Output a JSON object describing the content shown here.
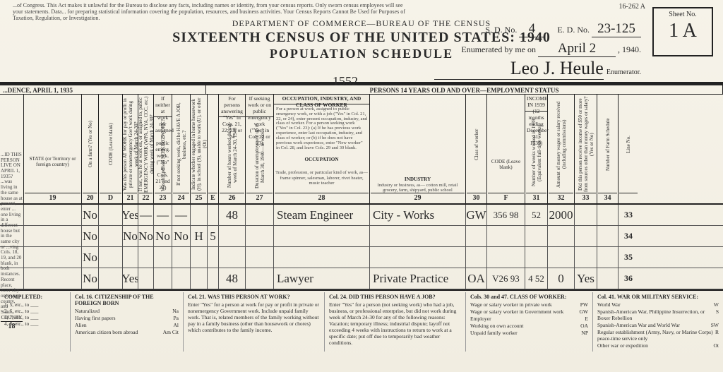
{
  "header": {
    "top_note": "...of Congress. This Act makes it unlawful for the Bureau to disclose any facts, including names or identity, from your census reports. Only sworn census employees will see your statements. Data... for preparing statistical information covering the population, resources, and business activities. Your Census Reports Cannot Be Used for Purposes of Taxation, Regulation, or Investigation.",
    "form_number": "16-262 A",
    "department": "DEPARTMENT OF COMMERCE—BUREAU OF THE CENSUS",
    "title": "SIXTEENTH CENSUS OF THE UNITED STATES: 1940",
    "subtitle": "POPULATION SCHEDULE",
    "sd_label": "S. D. No.",
    "sd_value": "4",
    "ed_label": "E. D. No.",
    "ed_value": "23-125",
    "sheet_label": "Sheet No.",
    "sheet_value": "1 A",
    "enum_label": "Enumerated by me on",
    "enum_date": "April 2",
    "enum_year_suffix": ", 1940.",
    "enumerator_signature": "Leo J. Heule",
    "enumerator_caption": "Enumerator.",
    "stamp": "1552"
  },
  "section_bar": {
    "left": "...DENCE, APRIL 1, 1935",
    "mid": "PERSONS 14 YEARS OLD AND OVER—EMPLOYMENT STATUS"
  },
  "column_heads": {
    "c18": {
      "num": "18",
      "label": "COUNTY"
    },
    "c19": {
      "num": "19",
      "label": "STATE (or Territory or foreign country)"
    },
    "c20": {
      "num": "20",
      "label": "On a farm? (Yes or No)",
      "code": "CODE (Leave blank)"
    },
    "group21_25": "If neither at work nor assigned to public emerg. work. (\"No\" in Cols. 21 and 22)",
    "groupD": "D",
    "c21": {
      "num": "21",
      "label": "Was this person AT WORK for pay or profit in private or nonemergency Gov't work during week of March 24-30?"
    },
    "c22": {
      "num": "22",
      "label": "If not, was he at work on, or assigned to, public EMERGENCY WORK (WPA, NYA, CCC, etc.) during week of March 24-30?"
    },
    "c23": {
      "num": "23",
      "label": "Was this person SEEKING WORK?"
    },
    "c24": {
      "num": "24",
      "label": "If not seeking work, did he HAVE A JOB, business, etc.?"
    },
    "c25": {
      "num": "25",
      "label": "Indicate whether engaged in home housework (H), in school (S), unable to work (U), or other (Ot)"
    },
    "E": "E",
    "c26": {
      "num": "26",
      "label": "Number of hours worked during week of March 24-30, 1940",
      "group": "For persons answering \"Yes\" in Cols. 21, 22, 23, or 24"
    },
    "c27": {
      "num": "27",
      "label": "Duration of unemployment up to March 30, 1940—in weeks",
      "group": "If seeking work or on public emergency work (\"Yes\" in Col. 22 or 23)"
    },
    "occ_group": "OCCUPATION, INDUSTRY, AND CLASS OF WORKER",
    "occ_note": "For a person at work, assigned to public emergency work, or with a job (\"Yes\" in Col. 21, 22, or 24), enter present occupation, industry, and class of worker. For a person seeking work (\"Yes\" in Col. 23): (a) If he has previous work experience, enter last occupation, industry, and class of worker; or (b) if he does not have previous work experience, enter \"New worker\" in Col. 28, and leave Cols. 29 and 30 blank.",
    "c28": {
      "num": "28",
      "label": "OCCUPATION",
      "sub": "Trade, profession, or particular kind of work, as— frame spinner, salesman, laborer, rivet heater, music teacher"
    },
    "c29": {
      "num": "29",
      "label": "INDUSTRY",
      "sub": "Industry or business, as— cotton mill, retail grocery, farm, shipyard, public school"
    },
    "c30": {
      "num": "30",
      "label": "Class of worker"
    },
    "F": {
      "label": "CODE (Leave blank)",
      "letter": "F"
    },
    "income_group": "INCOME IN 1939 (12 months ending December 31, 1939)",
    "c31": {
      "num": "31",
      "label": "Number of weeks worked in 1939 (Equivalent full-time weeks)"
    },
    "c32": {
      "num": "32",
      "label": "Amount of money wages or salary received (including commissions)"
    },
    "c33": {
      "num": "33",
      "label": "Did this person receive income of $50 or more from sources other than money wages or salary? (Yes or No)"
    },
    "c34": {
      "num": "34",
      "label": "Number of Farm Schedule"
    },
    "line": "Line No."
  },
  "rows": [
    {
      "c20": "No",
      "c21": "Yes",
      "c22": "—",
      "c23": "—",
      "c24": "—",
      "c25": "",
      "E": "",
      "c26": "48",
      "c27": "",
      "c28": "Steam Engineer",
      "c29": "City - Works",
      "c30": "GW",
      "F": "356 98",
      "c31": "52",
      "c32": "2000",
      "c33": "",
      "line": "33"
    },
    {
      "c20": "No",
      "c21": "No",
      "c22": "No",
      "c23": "No",
      "c24": "No",
      "c25": "H",
      "E": "5",
      "c26": "",
      "c27": "",
      "c28": "",
      "c29": "",
      "c30": "",
      "F": "",
      "c31": "",
      "c32": "",
      "c33": "",
      "line": "34"
    },
    {
      "c20": "No",
      "c21": "",
      "c22": "",
      "c23": "",
      "c24": "",
      "c25": "",
      "E": "",
      "c26": "",
      "c27": "",
      "c28": "",
      "c29": "",
      "c30": "",
      "F": "",
      "c31": "",
      "c32": "",
      "c33": "",
      "line": "35"
    },
    {
      "c20": "No",
      "c21": "Yes",
      "c22": "",
      "c23": "",
      "c24": "",
      "c25": "",
      "E": "",
      "c26": "48",
      "c27": "",
      "c28": "Lawyer",
      "c29": "Private Practice",
      "c30": "OA",
      "F": "V26 93",
      "c31": "4 52",
      "c32": "0",
      "c33": "Yes",
      "line": "36"
    }
  ],
  "footer": {
    "completed": "COMPLETED:",
    "col1_head": "Col. 16. CITIZENSHIP OF THE FOREIGN BORN",
    "col1": [
      [
        "Naturalized",
        "Na"
      ],
      [
        "Having first papers",
        "Pa"
      ],
      [
        "Alien",
        "Al"
      ],
      [
        "American citizen born abroad",
        "Am Cit"
      ]
    ],
    "col2_head": "Col. 21. WAS THIS PERSON AT WORK?",
    "col2_body": "Enter \"Yes\" for a person at work for pay or profit in private or nonemergency Government work. Include unpaid family work. That is, related members of the family working without pay in a family business (other than housework or chores) which contributes to the family income.",
    "col3_head": "Col. 24. DID THIS PERSON HAVE A JOB?",
    "col3_body": "Enter \"Yes\" for a person (not seeking work) who had a job, business, or professional enterprise, but did not work during week of March 24-30 for any of the following reasons: Vacation; temporary illness; industrial dispute; layoff not exceeding 4 weeks with instructions to return to work at a specific date; put off due to temporarily bad weather conditions.",
    "col4_head": "Cols. 30 and 47. CLASS OF WORKER:",
    "col4": [
      [
        "Wage or salary worker in private work",
        "PW"
      ],
      [
        "Wage or salary worker in Government work",
        "GW"
      ],
      [
        "Employer",
        "E"
      ],
      [
        "Working on own account",
        "OA"
      ],
      [
        "Unpaid family worker",
        "NP"
      ]
    ],
    "col5_head": "Col. 41. WAR OR MILITARY SERVICE:",
    "col5": [
      "World War",
      "W",
      "Spanish-American War, Philippine Insurrection, or Boxer Rebellion",
      "S",
      "Spanish-American War and World War",
      "SW",
      "Regular establishment (Army, Navy, or Marine Corps) peace-time service only",
      "R",
      "Other war or expedition",
      "Ot"
    ],
    "sup_lines": [
      "1, 5, etc., to ___",
      "2, 6, etc., to ___",
      "3, 7, etc., to ___",
      "4, 8, etc., to ___"
    ]
  }
}
